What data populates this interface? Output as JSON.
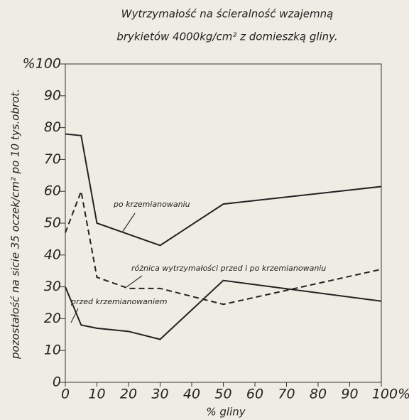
{
  "chart_data": {
    "type": "line",
    "title": [
      "Wytrzymałość na ścieralność wzajemną",
      "brykietów 4000kg/cm² z domieszką gliny."
    ],
    "x_label": "% gliny",
    "y_label": "pozostałość na sicie 35 oczek/cm² po 10 tys.obrot.",
    "x": [
      0,
      5,
      10,
      20,
      30,
      50,
      100
    ],
    "series": [
      {
        "name": "po krzemianowaniu",
        "color": "#222",
        "dash": false,
        "values": [
          78,
          77.5,
          50,
          46.5,
          43,
          56,
          61.5
        ]
      },
      {
        "name": "różnica wytrzymałości przed i po krzemianowaniu",
        "color": "#222",
        "dash": true,
        "values": [
          47,
          60,
          33,
          29.5,
          29.5,
          24.5,
          35.5
        ]
      },
      {
        "name": "przed krzemianowaniem",
        "color": "#222",
        "dash": false,
        "values": [
          30,
          18,
          17,
          16,
          13.5,
          32,
          25.5
        ]
      }
    ],
    "xlim": [
      0,
      100
    ],
    "ylim": [
      0,
      100
    ],
    "xticks": [
      0,
      10,
      20,
      30,
      40,
      50,
      60,
      70,
      80,
      90,
      {
        "value": 100,
        "label": "100%"
      }
    ],
    "yticks": [
      0,
      10,
      20,
      30,
      40,
      50,
      60,
      70,
      80,
      90,
      {
        "value": 100,
        "label": "%100"
      }
    ]
  }
}
